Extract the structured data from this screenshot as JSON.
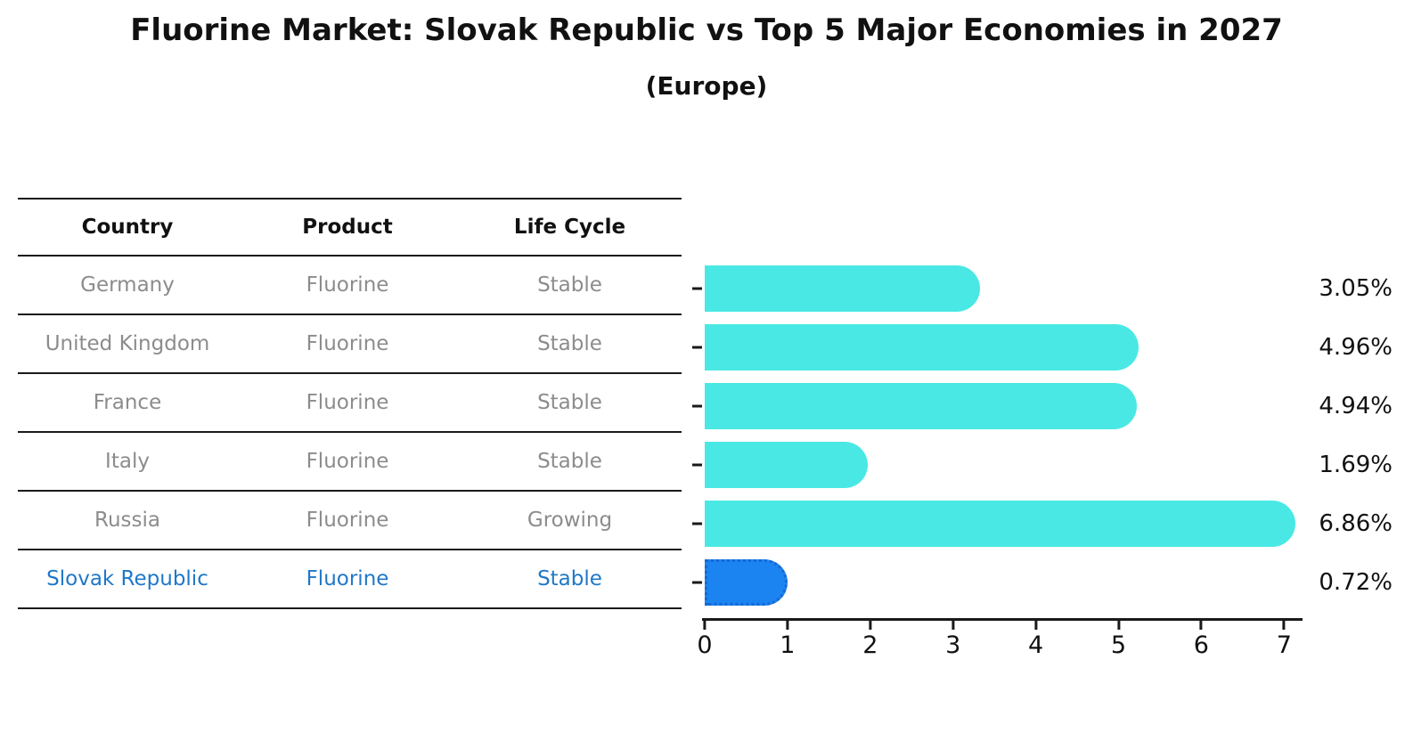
{
  "title": "Fluorine Market: Slovak Republic vs Top 5 Major Economies in 2027",
  "subtitle": "(Europe)",
  "table": {
    "headers": [
      "Country",
      "Product",
      "Life Cycle"
    ],
    "rows": [
      {
        "country": "Germany",
        "product": "Fluorine",
        "life_cycle": "Stable",
        "highlight": false
      },
      {
        "country": "United Kingdom",
        "product": "Fluorine",
        "life_cycle": "Stable",
        "highlight": false
      },
      {
        "country": "France",
        "product": "Fluorine",
        "life_cycle": "Stable",
        "highlight": false
      },
      {
        "country": "Italy",
        "product": "Fluorine",
        "life_cycle": "Stable",
        "highlight": false
      },
      {
        "country": "Russia",
        "product": "Fluorine",
        "life_cycle": "Growing",
        "highlight": false
      },
      {
        "country": "Slovak Republic",
        "product": "Fluorine",
        "life_cycle": "Stable",
        "highlight": true
      }
    ]
  },
  "chart_data": {
    "type": "bar",
    "orientation": "horizontal",
    "title": "Fluorine Market: Slovak Republic vs Top 5 Major Economies in 2027 (Europe)",
    "categories": [
      "Germany",
      "United Kingdom",
      "France",
      "Italy",
      "Russia",
      "Slovak Republic"
    ],
    "values": [
      3.05,
      4.96,
      4.94,
      1.69,
      6.86,
      0.72
    ],
    "labels": [
      "3.05%",
      "4.96%",
      "4.94%",
      "1.69%",
      "6.86%",
      "0.72%"
    ],
    "xticks": [
      "0",
      "1",
      "2",
      "3",
      "4",
      "5",
      "6",
      "7"
    ],
    "xlim": [
      0,
      7.2
    ],
    "xlabel": "",
    "ylabel": "",
    "grid": false,
    "legend": "none",
    "bar_color": "#4AE8E4",
    "highlight_index": 5,
    "highlight_color": "#1B84F0",
    "highlight_border": "#1568D3"
  },
  "colors": {
    "highlight_text": "#1F78C8",
    "table_text": "#8c8c8c",
    "axis": "#1a1a1a"
  }
}
